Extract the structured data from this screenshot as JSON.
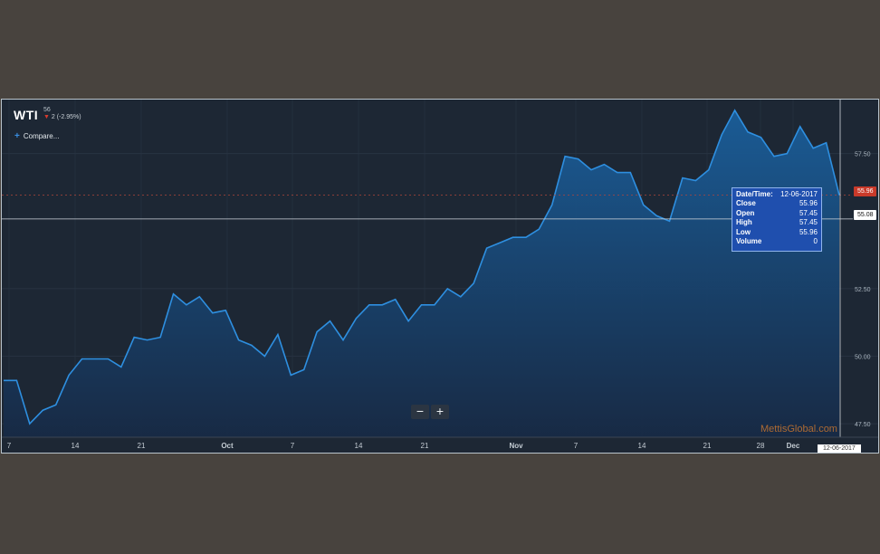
{
  "header": {
    "symbol": "WTI",
    "last": "56",
    "change": "2 (-2.95%)",
    "compare_label": "Compare..."
  },
  "zoom": {
    "out_label": "−",
    "in_label": "+"
  },
  "tooltip": {
    "rows": [
      {
        "label": "Date/Time:",
        "value": "12-06-2017"
      },
      {
        "label": "Close",
        "value": "55.96"
      },
      {
        "label": "Open",
        "value": "57.45"
      },
      {
        "label": "High",
        "value": "57.45"
      },
      {
        "label": "Low",
        "value": "55.96"
      },
      {
        "label": "Volume",
        "value": "0"
      }
    ]
  },
  "price_tags": {
    "current": "55.96",
    "crosshair": "55.08"
  },
  "date_tag": "12-06-2017",
  "watermark": "MettisGlobal.com",
  "colors": {
    "background": "#1d2734",
    "line": "#2e8fe0",
    "area_top": "#1a5e9a",
    "area_bottom": "#172a45",
    "current_price": "#c93a2a"
  },
  "chart_data": {
    "type": "area",
    "title": "",
    "xlabel": "",
    "ylabel": "",
    "y_ticks": [
      47.5,
      50.0,
      52.5,
      57.5
    ],
    "y_tick_labels": [
      "47.50",
      "50.00",
      "52.50",
      "57.50"
    ],
    "ylim": [
      47.0,
      59.5
    ],
    "x_ticks": [
      {
        "label": "7",
        "date": "2017-09-07"
      },
      {
        "label": "14",
        "date": "2017-09-14"
      },
      {
        "label": "21",
        "date": "2017-09-21"
      },
      {
        "label": "Oct",
        "date": "2017-10-01"
      },
      {
        "label": "7",
        "date": "2017-10-07"
      },
      {
        "label": "14",
        "date": "2017-10-14"
      },
      {
        "label": "21",
        "date": "2017-10-21"
      },
      {
        "label": "Nov",
        "date": "2017-11-01"
      },
      {
        "label": "7",
        "date": "2017-11-07"
      },
      {
        "label": "14",
        "date": "2017-11-14"
      },
      {
        "label": "21",
        "date": "2017-11-21"
      },
      {
        "label": "28",
        "date": "2017-11-28"
      },
      {
        "label": "Dec",
        "date": "2017-12-01"
      }
    ],
    "grid": true,
    "series": [
      {
        "name": "WTI",
        "points": [
          [
            "2017-09-03",
            49.1
          ],
          [
            "2017-09-04",
            49.1
          ],
          [
            "2017-09-05",
            47.5
          ],
          [
            "2017-09-06",
            48.0
          ],
          [
            "2017-09-07",
            48.2
          ],
          [
            "2017-09-08",
            49.3
          ],
          [
            "2017-09-09",
            49.9
          ],
          [
            "2017-09-10",
            49.9
          ],
          [
            "2017-09-11",
            49.9
          ],
          [
            "2017-09-12",
            49.6
          ],
          [
            "2017-09-13",
            50.7
          ],
          [
            "2017-09-14",
            50.6
          ],
          [
            "2017-09-15",
            50.7
          ],
          [
            "2017-09-16",
            52.3
          ],
          [
            "2017-09-17",
            51.9
          ],
          [
            "2017-09-18",
            52.2
          ],
          [
            "2017-09-19",
            51.6
          ],
          [
            "2017-09-20",
            51.7
          ],
          [
            "2017-09-21",
            50.6
          ],
          [
            "2017-09-22",
            50.4
          ],
          [
            "2017-09-23",
            50.0
          ],
          [
            "2017-09-24",
            50.8
          ],
          [
            "2017-09-25",
            49.3
          ],
          [
            "2017-09-26",
            49.5
          ],
          [
            "2017-09-27",
            50.9
          ],
          [
            "2017-09-28",
            51.3
          ],
          [
            "2017-09-29",
            50.6
          ],
          [
            "2017-09-30",
            51.4
          ],
          [
            "2017-10-01",
            51.9
          ],
          [
            "2017-10-02",
            51.9
          ],
          [
            "2017-10-03",
            52.1
          ],
          [
            "2017-10-04",
            51.3
          ],
          [
            "2017-10-05",
            51.9
          ],
          [
            "2017-10-06",
            51.9
          ],
          [
            "2017-10-07",
            52.5
          ],
          [
            "2017-10-08",
            52.2
          ],
          [
            "2017-10-09",
            52.7
          ],
          [
            "2017-10-10",
            54.0
          ],
          [
            "2017-10-11",
            54.2
          ],
          [
            "2017-10-12",
            54.4
          ],
          [
            "2017-10-13",
            54.4
          ],
          [
            "2017-10-14",
            54.7
          ],
          [
            "2017-10-15",
            55.6
          ],
          [
            "2017-10-16",
            57.4
          ],
          [
            "2017-10-17",
            57.3
          ],
          [
            "2017-10-18",
            56.9
          ],
          [
            "2017-10-19",
            57.1
          ],
          [
            "2017-10-20",
            56.8
          ],
          [
            "2017-10-21",
            56.8
          ],
          [
            "2017-10-22",
            55.6
          ],
          [
            "2017-10-23",
            55.2
          ],
          [
            "2017-10-24",
            55.0
          ],
          [
            "2017-10-25",
            56.6
          ],
          [
            "2017-10-26",
            56.5
          ],
          [
            "2017-10-27",
            56.9
          ],
          [
            "2017-10-28",
            58.2
          ],
          [
            "2017-10-29",
            59.1
          ],
          [
            "2017-10-30",
            58.3
          ],
          [
            "2017-10-31",
            58.1
          ],
          [
            "2017-11-01",
            57.4
          ],
          [
            "2017-11-02",
            57.5
          ],
          [
            "2017-11-03",
            58.5
          ],
          [
            "2017-11-04",
            57.7
          ],
          [
            "2017-11-05",
            57.9
          ],
          [
            "2017-11-06",
            55.96
          ]
        ]
      }
    ],
    "crosshair": {
      "x_date": "2017-12-06",
      "y": 55.08
    },
    "current_price_line": 55.96
  }
}
